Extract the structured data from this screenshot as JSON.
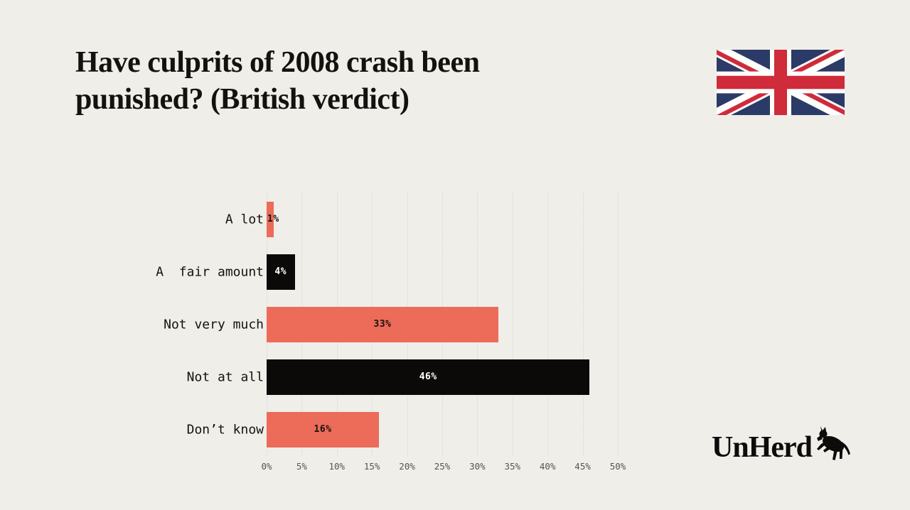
{
  "header": {
    "title_lines": [
      "Have culprits of 2008 crash been",
      "punished? (British verdict)"
    ],
    "flag": "united-kingdom"
  },
  "brand": {
    "logo_text": "UnHerd"
  },
  "colors": {
    "background": "#EFEEE9",
    "salmon": "#EC6B59",
    "bar_black": "#0B0A08",
    "gridline": "#D8D6CD",
    "axis_text": "#56544E",
    "title_text": "#14110E",
    "flag_blue": "#2B3A66",
    "flag_red": "#CF2B3B"
  },
  "chart_data": {
    "type": "bar",
    "orientation": "horizontal",
    "title": "Have culprits of 2008 crash been punished? (British verdict)",
    "categories": [
      "A lot",
      "A  fair amount",
      "Not very much",
      "Not at all",
      "Don’t know"
    ],
    "values": [
      1,
      4,
      33,
      46,
      16
    ],
    "value_labels": [
      "1%",
      "4%",
      "33%",
      "46%",
      "16%"
    ],
    "bar_colors": [
      "#EC6B59",
      "#0B0A08",
      "#EC6B59",
      "#0B0A08",
      "#EC6B59"
    ],
    "value_label_colors": [
      "#16130E",
      "#FFFFFF",
      "#16130E",
      "#FFFFFF",
      "#16130E"
    ],
    "xlim": [
      0,
      50
    ],
    "x_ticks": [
      "0%",
      "5%",
      "10%",
      "15%",
      "20%",
      "25%",
      "30%",
      "35%",
      "40%",
      "45%",
      "50%"
    ],
    "grid": "vertical-dotted",
    "legend": "none",
    "xlabel": "",
    "ylabel": ""
  }
}
